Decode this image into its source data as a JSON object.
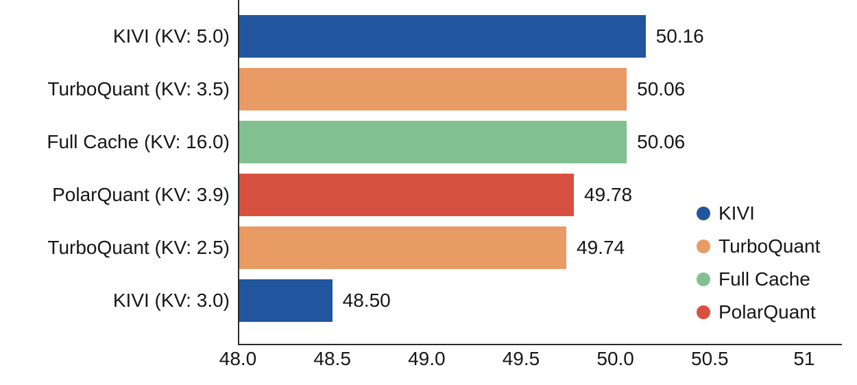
{
  "chart_data": {
    "type": "bar",
    "orientation": "horizontal",
    "title": "",
    "xlabel": "",
    "ylabel": "",
    "grid": false,
    "categories": [
      "KIVI (KV: 5.0)",
      "TurboQuant (KV: 3.5)",
      "Full Cache (KV: 16.0)",
      "PolarQuant (KV: 3.9)",
      "TurboQuant (KV: 2.5)",
      "KIVI (KV: 3.0)"
    ],
    "values": [
      50.16,
      50.06,
      50.06,
      49.78,
      49.74,
      48.5
    ],
    "value_labels": [
      "50.16",
      "50.06",
      "50.06",
      "49.78",
      "49.74",
      "48.50"
    ],
    "bar_series": [
      "KIVI",
      "TurboQuant",
      "Full Cache",
      "PolarQuant",
      "TurboQuant",
      "KIVI"
    ],
    "bar_colors": [
      "#21569E",
      "#E89B64",
      "#82C092",
      "#D8503F",
      "#E89B64",
      "#21569E"
    ],
    "xlim": [
      48.0,
      51.2
    ],
    "xticks": [
      48.0,
      48.5,
      49.0,
      49.5,
      50.0,
      50.5,
      51.0
    ],
    "xtick_labels": [
      "48.0",
      "48.5",
      "49.0",
      "49.5",
      "50.0",
      "50.5",
      "51"
    ],
    "legend": {
      "position": "right-middle",
      "items": [
        {
          "label": "KIVI",
          "color": "#21569E"
        },
        {
          "label": "TurboQuant",
          "color": "#E89B64"
        },
        {
          "label": "Full Cache",
          "color": "#82C092"
        },
        {
          "label": "PolarQuant",
          "color": "#D8503F"
        }
      ]
    },
    "axis_color": "#2a2a2a",
    "text_color": "#161616"
  }
}
